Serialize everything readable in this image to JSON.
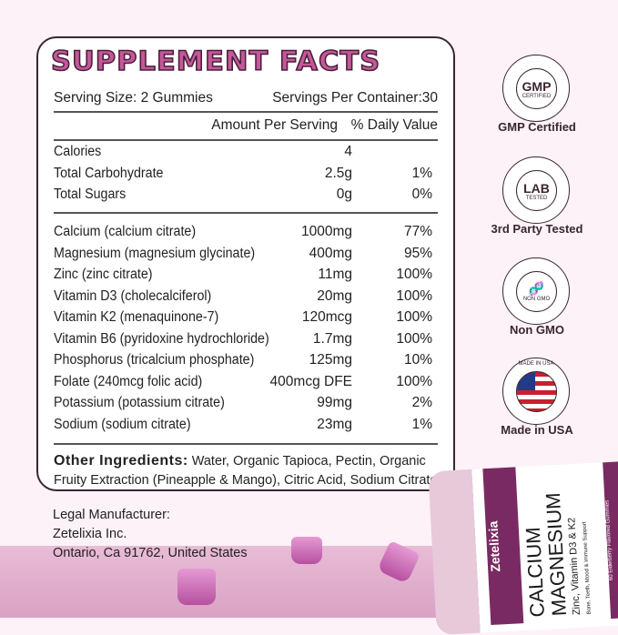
{
  "title": "SUPPLEMENT FACTS",
  "serving_size": "Serving Size: 2 Gummies",
  "servings_per_container": "Servings Per Container:30",
  "col_amount": "Amount Per Serving",
  "col_dv": "% Daily Value",
  "basics": [
    {
      "name": "Calories",
      "amount": "4",
      "dv": ""
    },
    {
      "name": "Total Carbohydrate",
      "amount": "2.5g",
      "dv": "1%"
    },
    {
      "name": "Total Sugars",
      "amount": "0g",
      "dv": "0%"
    }
  ],
  "nutrients": [
    {
      "name": "Calcium (calcium citrate)",
      "amount": "1000mg",
      "dv": "77%"
    },
    {
      "name": "Magnesium (magnesium glycinate)",
      "amount": "400mg",
      "dv": "95%"
    },
    {
      "name": "Zinc (zinc citrate)",
      "amount": "11mg",
      "dv": "100%"
    },
    {
      "name": "Vitamin D3  (cholecalciferol)",
      "amount": "20mg",
      "dv": "100%"
    },
    {
      "name": "Vitamin K2  (menaquinone-7)",
      "amount": "120mcg",
      "dv": "100%"
    },
    {
      "name": "Vitamin B6  (pyridoxine hydrochloride)",
      "amount": "1.7mg",
      "dv": "100%"
    },
    {
      "name": "Phosphorus (tricalcium phosphate)",
      "amount": "125mg",
      "dv": "10%"
    },
    {
      "name": "Folate (240mcg folic acid)",
      "amount": "400mcg DFE",
      "dv": "100%"
    },
    {
      "name": "Potassium (potassium citrate)",
      "amount": "99mg",
      "dv": "2%"
    },
    {
      "name": "Sodium (sodium citrate)",
      "amount": "23mg",
      "dv": "1%"
    }
  ],
  "other_label": "Other Ingredients:",
  "other_text": " Water, Organic Tapioca, Pectin, Organic Fruity Extraction (Pineapple & Mango), Citric Acid, Sodium Citrate.",
  "legal": [
    "Legal Manufacturer:",
    "Zetelixia Inc.",
    "Ontario, Ca 91762, United States"
  ],
  "badges": [
    {
      "icon": "gmp-seal-icon",
      "main": "GMP",
      "sub": "CERTIFIED",
      "label": "GMP Certified"
    },
    {
      "icon": "lab-tested-seal-icon",
      "main": "LAB",
      "sub": "TESTED",
      "label": "3rd Party Tested"
    },
    {
      "icon": "non-gmo-seal-icon",
      "main": "🧬",
      "sub": "NON GMO",
      "label": "Non GMO"
    },
    {
      "icon": "usa-flag-seal-icon",
      "main": "",
      "sub": "MADE IN USA",
      "label": "Made in USA"
    }
  ],
  "bottle": {
    "brand": "Zetelixia",
    "line1": "CALCIUM",
    "line2": "MAGNESIUM",
    "line3": "Zinc, Vitamin D3 & K2",
    "benefit": "Bone, Teeth, Mood & Immune Support",
    "count": "60 Elderberry Flavored Gummies"
  },
  "colors": {
    "accent": "#c4589a",
    "dark": "#3a2630",
    "brand": "#7a2a62"
  }
}
